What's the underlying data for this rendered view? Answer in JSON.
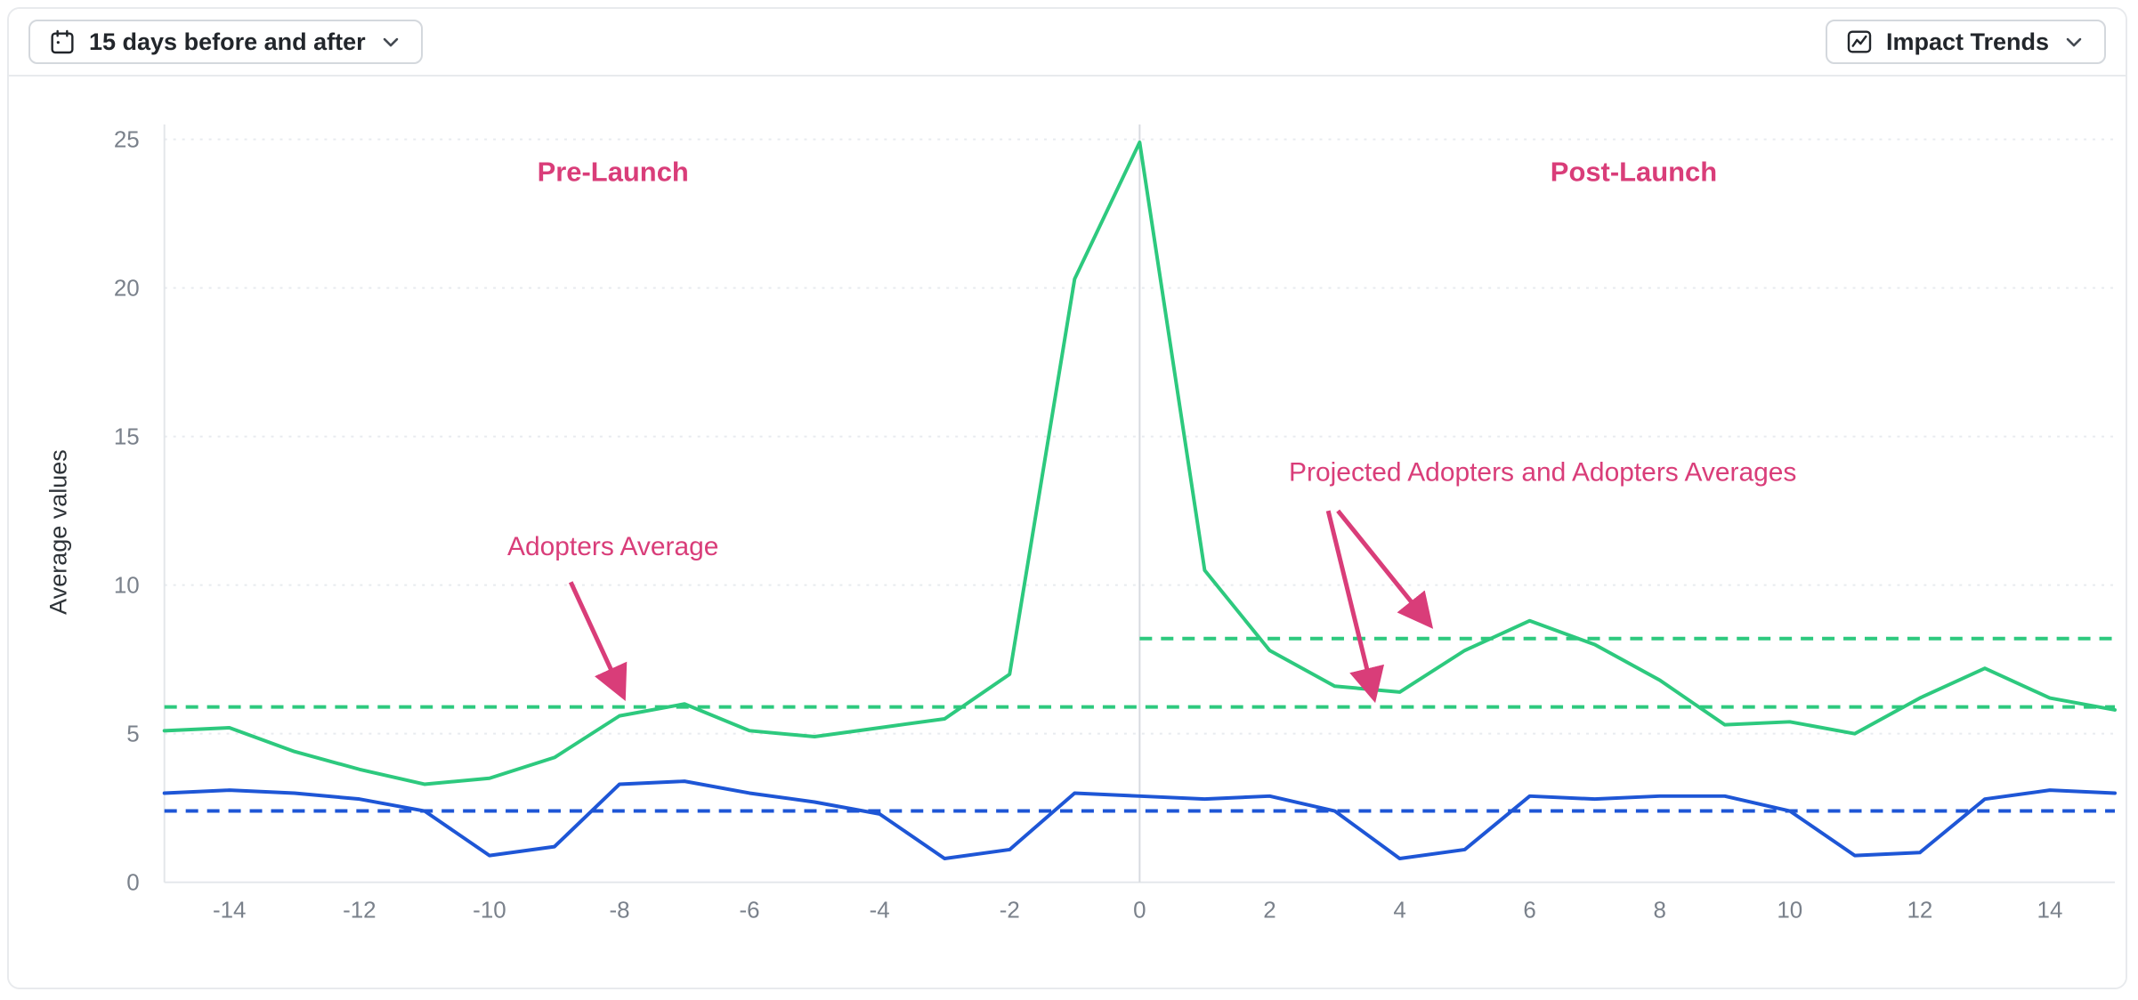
{
  "header": {
    "date_filter": {
      "label": "15 days before and after"
    },
    "trend_selector": {
      "label": "Impact Trends"
    }
  },
  "icons": {
    "date_filter": "calendar-icon",
    "trend_selector": "line-chart-icon",
    "dropdown": "chevron-down-icon"
  },
  "colors": {
    "adopters_green": "#2dc97e",
    "comparison_blue": "#1e56d6",
    "annotation_pink": "#d93d79"
  },
  "chart_data": {
    "type": "line",
    "title": "",
    "ylabel": "Average values",
    "xlim": [
      -15,
      15
    ],
    "ylim": [
      0,
      25.5
    ],
    "grid": "horizontal-dashed",
    "legend": "none",
    "xticks": [
      -14,
      -12,
      -10,
      -8,
      -6,
      -4,
      -2,
      0,
      2,
      4,
      6,
      8,
      10,
      12,
      14
    ],
    "yticks": [
      0,
      5,
      10,
      15,
      20,
      25
    ],
    "x": [
      -15,
      -14,
      -13,
      -12,
      -11,
      -10,
      -9,
      -8,
      -7,
      -6,
      -5,
      -4,
      -3,
      -2,
      -1,
      0,
      1,
      2,
      3,
      4,
      5,
      6,
      7,
      8,
      9,
      10,
      11,
      12,
      13,
      14,
      15
    ],
    "series": [
      {
        "name": "adopters",
        "color": "#2dc97e",
        "style": "solid",
        "values": [
          5.1,
          5.2,
          4.4,
          3.8,
          3.3,
          3.5,
          4.2,
          5.6,
          6.0,
          5.1,
          4.9,
          5.2,
          5.5,
          7.0,
          20.3,
          24.9,
          10.5,
          7.8,
          6.6,
          6.4,
          7.8,
          8.8,
          8.0,
          6.8,
          5.3,
          5.4,
          5.0,
          6.2,
          7.2,
          6.2,
          5.8
        ]
      },
      {
        "name": "comparison-blue",
        "color": "#1e56d6",
        "style": "solid",
        "values": [
          3.0,
          3.1,
          3.0,
          2.8,
          2.4,
          0.9,
          1.2,
          3.3,
          3.4,
          3.0,
          2.7,
          2.3,
          0.8,
          1.1,
          3.0,
          2.9,
          2.8,
          2.9,
          2.4,
          0.8,
          1.1,
          2.9,
          2.8,
          2.9,
          2.9,
          2.4,
          0.9,
          1.0,
          2.8,
          3.1,
          3.0
        ]
      }
    ],
    "reference_lines": [
      {
        "name": "adopters-average-and-projection",
        "color": "#2dc97e",
        "y": 5.9,
        "x1": -15,
        "x2": 15
      },
      {
        "name": "adopters-average-post-launch",
        "color": "#2dc97e",
        "y": 8.2,
        "x1": 0,
        "x2": 15
      },
      {
        "name": "blue-average",
        "color": "#1e56d6",
        "y": 2.4,
        "x1": -15,
        "x2": 15
      }
    ],
    "annotation_color": "#d93d79",
    "annotations": [
      {
        "text": "Pre-Launch",
        "x": -8.1,
        "y": 23.6,
        "bold": true,
        "arrows": []
      },
      {
        "text": "Post-Launch",
        "x": 7.6,
        "y": 23.6,
        "bold": true,
        "arrows": []
      },
      {
        "text": "Adopters Average",
        "x": -8.1,
        "y": 11.0,
        "bold": false,
        "arrows": [
          {
            "x1": -8.75,
            "y1": 10.1,
            "x2": -7.95,
            "y2": 6.3
          }
        ]
      },
      {
        "text": "Projected Adopters and Adopters Averages",
        "x": 6.2,
        "y": 13.5,
        "bold": false,
        "arrows": [
          {
            "x1": 2.9,
            "y1": 12.5,
            "x2": 3.6,
            "y2": 6.25
          },
          {
            "x1": 3.05,
            "y1": 12.5,
            "x2": 4.45,
            "y2": 8.7
          }
        ]
      }
    ]
  }
}
